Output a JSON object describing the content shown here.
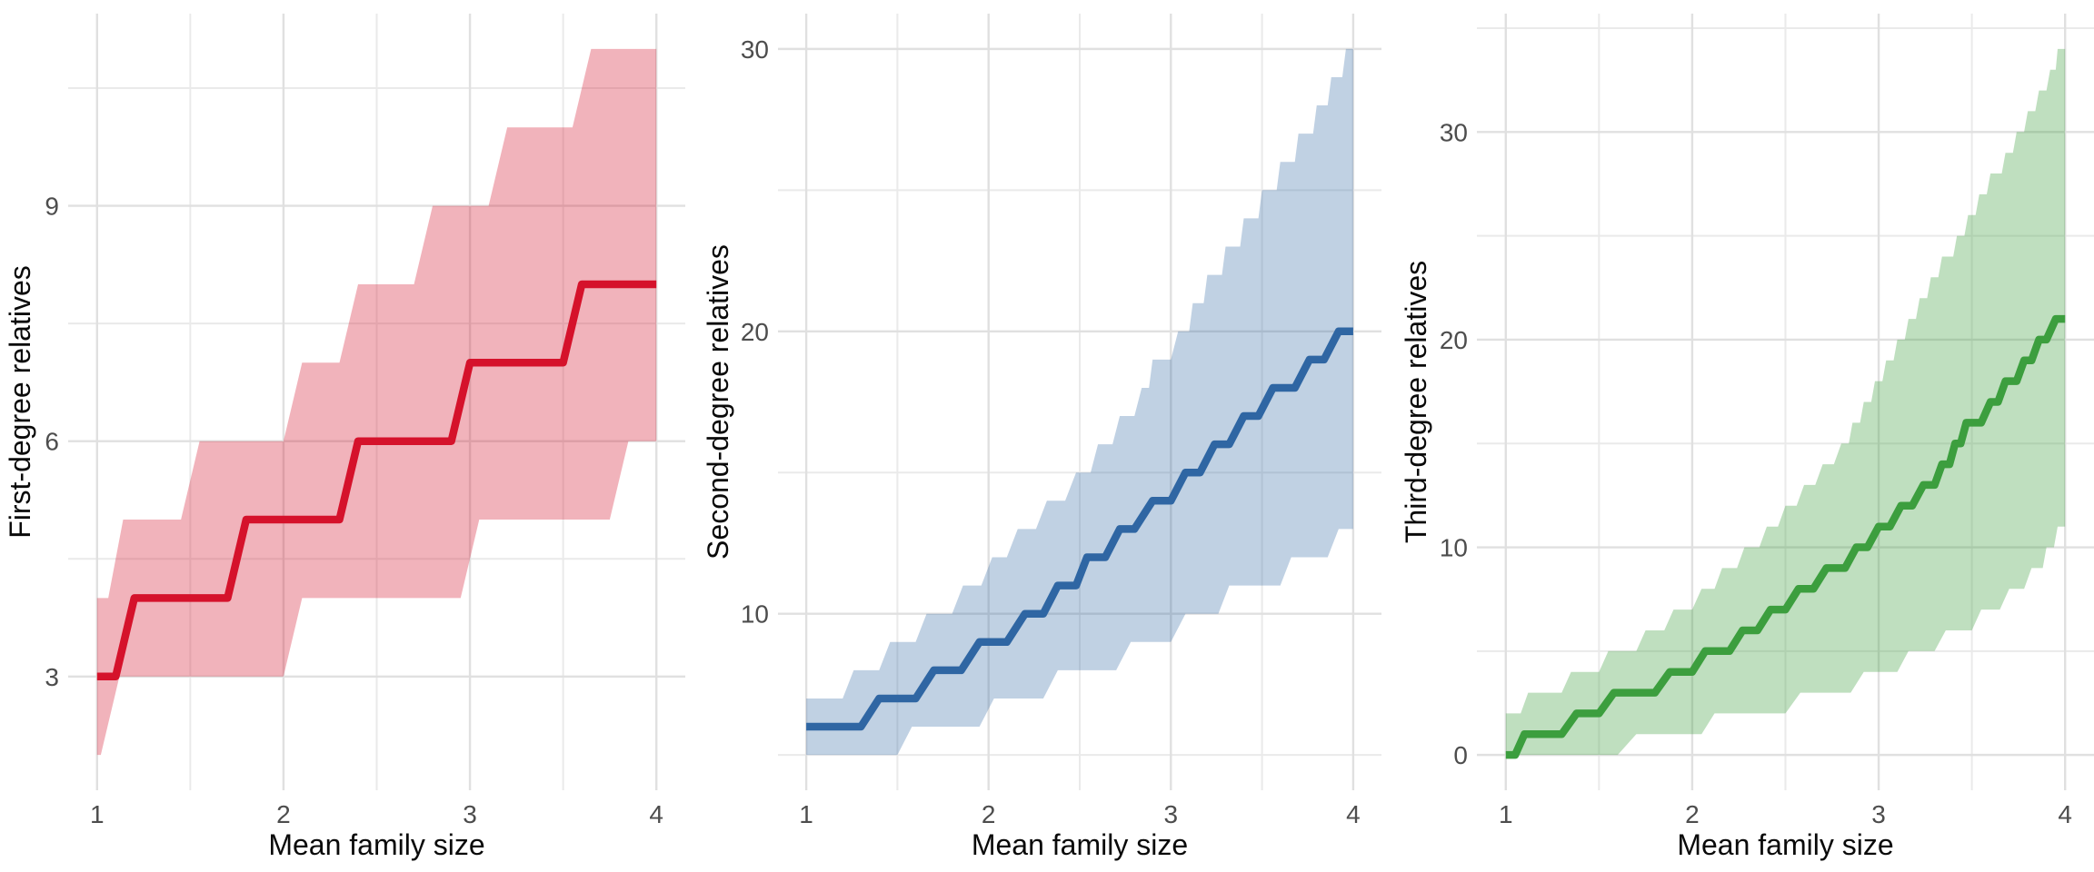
{
  "figure": {
    "xlabel": "Mean family size",
    "background_color": "#ffffff",
    "grid_major_color": "#e0e0e0",
    "grid_minor_color": "#eaeaea",
    "tick_label_color": "#4d4d4d",
    "axis_title_color": "#0a0a0a"
  },
  "chart_data": {
    "type": "line",
    "subtype": "step-line-with-confidence-ribbon",
    "grid": "on",
    "legend": "none",
    "panels": [
      {
        "ylabel": "First-degree relatives",
        "xlabel": "Mean family size",
        "line_color": "#d5122b",
        "ribbon_color": "rgba(213,18,43,0.32)",
        "x_ticks": [
          1,
          2,
          3,
          4
        ],
        "x_minor": [
          1.5,
          2.5,
          3.5
        ],
        "y_ticks": [
          3,
          6,
          9
        ],
        "y_minor": [
          4.5,
          7.5,
          10.5
        ],
        "xlim": [
          0.845,
          4.155
        ],
        "ylim": [
          1.55,
          11.45
        ],
        "median_steps": [
          [
            3,
            1.0,
            1.1
          ],
          [
            4,
            1.2,
            1.7
          ],
          [
            5,
            1.8,
            2.3
          ],
          [
            6,
            2.4,
            2.9
          ],
          [
            7,
            3.0,
            3.5
          ],
          [
            8,
            3.6,
            4.0
          ]
        ],
        "lower_steps": [
          [
            2,
            1.0,
            1.02
          ],
          [
            3,
            1.12,
            2.0
          ],
          [
            4,
            2.1,
            2.95
          ],
          [
            5,
            3.05,
            3.75
          ],
          [
            6,
            3.85,
            4.0
          ]
        ],
        "upper_steps": [
          [
            4,
            1.0,
            1.06
          ],
          [
            5,
            1.14,
            1.45
          ],
          [
            6,
            1.55,
            2.0
          ],
          [
            7,
            2.1,
            2.3
          ],
          [
            8,
            2.4,
            2.7
          ],
          [
            9,
            2.8,
            3.1
          ],
          [
            10,
            3.2,
            3.55
          ],
          [
            11,
            3.65,
            4.0
          ]
        ]
      },
      {
        "ylabel": "Second-degree relatives",
        "xlabel": "Mean family size",
        "line_color": "#2f66a3",
        "ribbon_color": "rgba(47,102,163,0.30)",
        "x_ticks": [
          1,
          2,
          3,
          4
        ],
        "x_minor": [
          1.5,
          2.5,
          3.5
        ],
        "y_ticks": [
          10,
          20,
          30
        ],
        "y_minor": [
          5,
          15,
          25
        ],
        "xlim": [
          0.845,
          4.155
        ],
        "ylim": [
          3.75,
          31.25
        ],
        "median_steps": [
          [
            6,
            1.0,
            1.3
          ],
          [
            7,
            1.4,
            1.6
          ],
          [
            8,
            1.7,
            1.85
          ],
          [
            9,
            1.95,
            2.1
          ],
          [
            10,
            2.2,
            2.3
          ],
          [
            11,
            2.38,
            2.48
          ],
          [
            12,
            2.54,
            2.64
          ],
          [
            13,
            2.72,
            2.8
          ],
          [
            14,
            2.9,
            3.0
          ],
          [
            15,
            3.08,
            3.16
          ],
          [
            16,
            3.24,
            3.32
          ],
          [
            17,
            3.4,
            3.48
          ],
          [
            18,
            3.56,
            3.68
          ],
          [
            19,
            3.76,
            3.84
          ],
          [
            20,
            3.92,
            4.0
          ]
        ],
        "lower_steps": [
          [
            5,
            1.0,
            1.5
          ],
          [
            6,
            1.58,
            1.95
          ],
          [
            7,
            2.03,
            2.3
          ],
          [
            8,
            2.38,
            2.7
          ],
          [
            9,
            2.78,
            3.0
          ],
          [
            10,
            3.08,
            3.26
          ],
          [
            11,
            3.32,
            3.6
          ],
          [
            12,
            3.66,
            3.86
          ],
          [
            13,
            3.92,
            4.0
          ]
        ],
        "upper_steps": [
          [
            7,
            1.0,
            1.2
          ],
          [
            8,
            1.26,
            1.4
          ],
          [
            9,
            1.46,
            1.6
          ],
          [
            10,
            1.66,
            1.8
          ],
          [
            11,
            1.86,
            1.96
          ],
          [
            12,
            2.02,
            2.1
          ],
          [
            13,
            2.16,
            2.26
          ],
          [
            14,
            2.32,
            2.42
          ],
          [
            15,
            2.48,
            2.56
          ],
          [
            16,
            2.6,
            2.68
          ],
          [
            17,
            2.72,
            2.8
          ],
          [
            18,
            2.84,
            2.88
          ],
          [
            19,
            2.9,
            3.0
          ],
          [
            20,
            3.04,
            3.1
          ],
          [
            21,
            3.12,
            3.18
          ],
          [
            22,
            3.2,
            3.28
          ],
          [
            23,
            3.3,
            3.38
          ],
          [
            24,
            3.4,
            3.48
          ],
          [
            25,
            3.5,
            3.58
          ],
          [
            26,
            3.6,
            3.68
          ],
          [
            27,
            3.7,
            3.78
          ],
          [
            28,
            3.8,
            3.86
          ],
          [
            29,
            3.88,
            3.94
          ],
          [
            30,
            3.96,
            4.0
          ]
        ]
      },
      {
        "ylabel": "Third-degree relatives",
        "xlabel": "Mean family size",
        "line_color": "#3c9e3e",
        "ribbon_color": "rgba(60,158,62,0.33)",
        "x_ticks": [
          1,
          2,
          3,
          4
        ],
        "x_minor": [
          1.5,
          2.5,
          3.5
        ],
        "y_ticks": [
          0,
          10,
          20,
          30
        ],
        "y_minor": [
          5,
          15,
          25,
          35
        ],
        "xlim": [
          0.845,
          4.155
        ],
        "ylim": [
          -1.7,
          35.7
        ],
        "median_steps": [
          [
            0,
            1.0,
            1.05
          ],
          [
            1,
            1.1,
            1.3
          ],
          [
            2,
            1.38,
            1.5
          ],
          [
            3,
            1.58,
            1.8
          ],
          [
            4,
            1.88,
            2.0
          ],
          [
            5,
            2.07,
            2.2
          ],
          [
            6,
            2.27,
            2.35
          ],
          [
            7,
            2.42,
            2.5
          ],
          [
            8,
            2.57,
            2.65
          ],
          [
            9,
            2.72,
            2.82
          ],
          [
            10,
            2.88,
            2.94
          ],
          [
            11,
            3.0,
            3.06
          ],
          [
            12,
            3.12,
            3.18
          ],
          [
            13,
            3.24,
            3.3
          ],
          [
            14,
            3.34,
            3.38
          ],
          [
            15,
            3.41,
            3.44
          ],
          [
            16,
            3.47,
            3.55
          ],
          [
            17,
            3.6,
            3.64
          ],
          [
            18,
            3.68,
            3.74
          ],
          [
            19,
            3.78,
            3.82
          ],
          [
            20,
            3.86,
            3.9
          ],
          [
            21,
            3.95,
            4.0
          ]
        ],
        "lower_steps": [
          [
            0,
            1.0,
            1.6
          ],
          [
            1,
            1.7,
            2.05
          ],
          [
            2,
            2.12,
            2.5
          ],
          [
            3,
            2.58,
            2.85
          ],
          [
            4,
            2.92,
            3.1
          ],
          [
            5,
            3.16,
            3.3
          ],
          [
            6,
            3.36,
            3.5
          ],
          [
            7,
            3.55,
            3.65
          ],
          [
            8,
            3.7,
            3.78
          ],
          [
            9,
            3.82,
            3.88
          ],
          [
            10,
            3.9,
            3.94
          ],
          [
            11,
            3.96,
            4.0
          ]
        ],
        "upper_steps": [
          [
            2,
            1.0,
            1.08
          ],
          [
            3,
            1.12,
            1.3
          ],
          [
            4,
            1.35,
            1.5
          ],
          [
            5,
            1.55,
            1.7
          ],
          [
            6,
            1.75,
            1.85
          ],
          [
            7,
            1.9,
            2.0
          ],
          [
            8,
            2.05,
            2.12
          ],
          [
            9,
            2.16,
            2.24
          ],
          [
            10,
            2.28,
            2.36
          ],
          [
            11,
            2.4,
            2.46
          ],
          [
            12,
            2.5,
            2.56
          ],
          [
            13,
            2.6,
            2.66
          ],
          [
            14,
            2.7,
            2.76
          ],
          [
            15,
            2.8,
            2.84
          ],
          [
            16,
            2.86,
            2.9
          ],
          [
            17,
            2.92,
            2.96
          ],
          [
            18,
            2.98,
            3.02
          ],
          [
            19,
            3.04,
            3.08
          ],
          [
            20,
            3.1,
            3.14
          ],
          [
            21,
            3.16,
            3.2
          ],
          [
            22,
            3.22,
            3.26
          ],
          [
            23,
            3.28,
            3.32
          ],
          [
            24,
            3.34,
            3.4
          ],
          [
            25,
            3.42,
            3.46
          ],
          [
            26,
            3.48,
            3.52
          ],
          [
            27,
            3.54,
            3.58
          ],
          [
            28,
            3.6,
            3.66
          ],
          [
            29,
            3.68,
            3.72
          ],
          [
            30,
            3.74,
            3.78
          ],
          [
            31,
            3.8,
            3.84
          ],
          [
            32,
            3.86,
            3.9
          ],
          [
            33,
            3.92,
            3.95
          ],
          [
            34,
            3.96,
            4.0
          ]
        ]
      }
    ]
  }
}
